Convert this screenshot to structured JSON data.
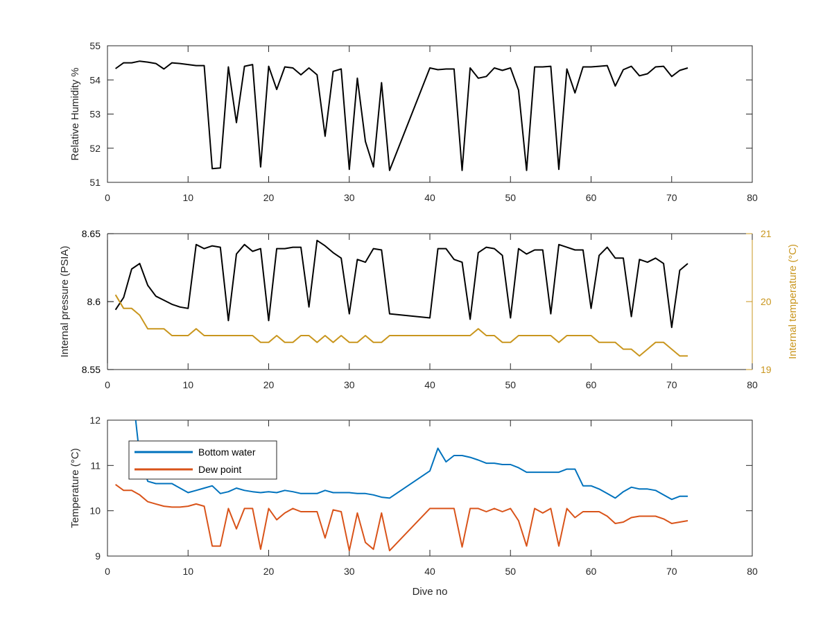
{
  "chart_data": [
    {
      "type": "line",
      "title": "",
      "xlabel": "",
      "ylabel": "Relative Humidity %",
      "xlim": [
        0,
        80
      ],
      "ylim": [
        51,
        55
      ],
      "xticks": [
        0,
        10,
        20,
        30,
        40,
        50,
        60,
        70,
        80
      ],
      "yticks": [
        51,
        52,
        53,
        54,
        55
      ],
      "grid": false,
      "series": [
        {
          "color": "#000000",
          "x": [
            1,
            2,
            3,
            4,
            5,
            6,
            7,
            8,
            9,
            10,
            11,
            12,
            13,
            14,
            15,
            16,
            17,
            18,
            19,
            20,
            21,
            22,
            23,
            24,
            25,
            26,
            27,
            28,
            29,
            30,
            31,
            32,
            33,
            34,
            35,
            40,
            41,
            42,
            43,
            44,
            45,
            46,
            47,
            48,
            49,
            50,
            51,
            52,
            53,
            54,
            55,
            56,
            57,
            58,
            59,
            60,
            61,
            62,
            63,
            64,
            65,
            66,
            67,
            68,
            69,
            70,
            71,
            72
          ],
          "values": [
            54.33,
            54.5,
            54.5,
            54.55,
            54.52,
            54.48,
            54.32,
            54.5,
            54.48,
            54.45,
            54.42,
            54.42,
            51.4,
            51.42,
            54.38,
            52.75,
            54.4,
            54.45,
            51.45,
            54.4,
            53.72,
            54.38,
            54.35,
            54.15,
            54.35,
            54.15,
            52.35,
            54.25,
            54.32,
            51.38,
            54.05,
            52.2,
            51.45,
            53.92,
            51.35,
            54.35,
            54.3,
            54.32,
            54.32,
            51.35,
            54.35,
            54.05,
            54.1,
            54.35,
            54.28,
            54.35,
            53.7,
            51.35,
            54.38,
            54.38,
            54.4,
            51.38,
            54.32,
            53.62,
            54.38,
            54.38,
            54.4,
            54.42,
            53.82,
            54.3,
            54.4,
            54.12,
            54.18,
            54.38,
            54.4,
            54.1,
            54.28,
            54.35
          ]
        }
      ]
    },
    {
      "type": "line",
      "title": "",
      "xlabel": "",
      "ylabel": "Internal pressure (PSIA)",
      "y2label": "Internal temperature (°C)",
      "xlim": [
        0,
        80
      ],
      "ylim": [
        8.55,
        8.65
      ],
      "y2lim": [
        19,
        21
      ],
      "xticks": [
        0,
        10,
        20,
        30,
        40,
        50,
        60,
        70,
        80
      ],
      "yticks": [
        8.55,
        8.6,
        8.65
      ],
      "ytick_labels": [
        "8.55",
        "8.6",
        "8.65"
      ],
      "y2ticks": [
        19,
        20,
        21
      ],
      "grid": false,
      "series": [
        {
          "axis": "left",
          "color": "#000000",
          "x": [
            1,
            2,
            3,
            4,
            5,
            6,
            7,
            8,
            9,
            10,
            11,
            12,
            13,
            14,
            15,
            16,
            17,
            18,
            19,
            20,
            21,
            22,
            23,
            24,
            25,
            26,
            27,
            28,
            29,
            30,
            31,
            32,
            33,
            34,
            35,
            40,
            41,
            42,
            43,
            44,
            45,
            46,
            47,
            48,
            49,
            50,
            51,
            52,
            53,
            54,
            55,
            56,
            57,
            58,
            59,
            60,
            61,
            62,
            63,
            64,
            65,
            66,
            67,
            68,
            69,
            70,
            71,
            72
          ],
          "values": [
            8.594,
            8.603,
            8.624,
            8.628,
            8.612,
            8.604,
            8.601,
            8.598,
            8.596,
            8.595,
            8.642,
            8.639,
            8.641,
            8.64,
            8.586,
            8.635,
            8.642,
            8.637,
            8.639,
            8.586,
            8.639,
            8.639,
            8.64,
            8.64,
            8.596,
            8.645,
            8.641,
            8.636,
            8.632,
            8.591,
            8.631,
            8.629,
            8.639,
            8.638,
            8.591,
            8.588,
            8.639,
            8.639,
            8.631,
            8.629,
            8.587,
            8.636,
            8.64,
            8.639,
            8.634,
            8.588,
            8.639,
            8.635,
            8.638,
            8.638,
            8.591,
            8.642,
            8.64,
            8.638,
            8.638,
            8.595,
            8.634,
            8.64,
            8.632,
            8.632,
            8.589,
            8.631,
            8.629,
            8.632,
            8.628,
            8.581,
            8.623,
            8.628
          ]
        },
        {
          "axis": "right",
          "color": "#C9961E",
          "x": [
            1,
            2,
            3,
            4,
            5,
            6,
            7,
            8,
            9,
            10,
            11,
            12,
            13,
            14,
            15,
            16,
            17,
            18,
            19,
            20,
            21,
            22,
            23,
            24,
            25,
            26,
            27,
            28,
            29,
            30,
            31,
            32,
            33,
            34,
            35,
            40,
            41,
            42,
            43,
            44,
            45,
            46,
            47,
            48,
            49,
            50,
            51,
            52,
            53,
            54,
            55,
            56,
            57,
            58,
            59,
            60,
            61,
            62,
            63,
            64,
            65,
            66,
            67,
            68,
            69,
            70,
            71,
            72
          ],
          "values": [
            20.1,
            19.9,
            19.9,
            19.8,
            19.6,
            19.6,
            19.6,
            19.5,
            19.5,
            19.5,
            19.6,
            19.5,
            19.5,
            19.5,
            19.5,
            19.5,
            19.5,
            19.5,
            19.4,
            19.4,
            19.5,
            19.4,
            19.4,
            19.5,
            19.5,
            19.4,
            19.5,
            19.4,
            19.5,
            19.4,
            19.4,
            19.5,
            19.4,
            19.4,
            19.5,
            19.5,
            19.5,
            19.5,
            19.5,
            19.5,
            19.5,
            19.6,
            19.5,
            19.5,
            19.4,
            19.4,
            19.5,
            19.5,
            19.5,
            19.5,
            19.5,
            19.4,
            19.5,
            19.5,
            19.5,
            19.5,
            19.4,
            19.4,
            19.4,
            19.3,
            19.3,
            19.2,
            19.3,
            19.4,
            19.4,
            19.3,
            19.2,
            19.2
          ]
        }
      ]
    },
    {
      "type": "line",
      "title": "",
      "xlabel": "Dive no",
      "ylabel": "Temperature (°C)",
      "xlim": [
        0,
        80
      ],
      "ylim": [
        9,
        12
      ],
      "xticks": [
        0,
        10,
        20,
        30,
        40,
        50,
        60,
        70,
        80
      ],
      "yticks": [
        9,
        10,
        11,
        12
      ],
      "grid": false,
      "legend": "upper-left",
      "series": [
        {
          "name": "Bottom water",
          "color": "#0072BD",
          "x": [
            3.5,
            4,
            5,
            6,
            7,
            8,
            9,
            10,
            11,
            12,
            13,
            14,
            15,
            16,
            17,
            18,
            19,
            20,
            21,
            22,
            23,
            24,
            25,
            26,
            27,
            28,
            29,
            30,
            31,
            32,
            33,
            34,
            35,
            40,
            41,
            42,
            43,
            44,
            45,
            46,
            47,
            48,
            49,
            50,
            51,
            52,
            53,
            54,
            55,
            56,
            57,
            58,
            59,
            60,
            61,
            62,
            63,
            64,
            65,
            66,
            67,
            68,
            69,
            70,
            71,
            72
          ],
          "values": [
            12,
            11.2,
            10.65,
            10.6,
            10.6,
            10.6,
            10.5,
            10.4,
            10.45,
            10.5,
            10.55,
            10.38,
            10.42,
            10.5,
            10.45,
            10.42,
            10.4,
            10.42,
            10.4,
            10.45,
            10.42,
            10.38,
            10.38,
            10.38,
            10.45,
            10.4,
            10.4,
            10.4,
            10.38,
            10.38,
            10.35,
            10.3,
            10.28,
            10.88,
            11.38,
            11.08,
            11.22,
            11.22,
            11.18,
            11.12,
            11.05,
            11.05,
            11.02,
            11.02,
            10.95,
            10.85,
            10.85,
            10.85,
            10.85,
            10.85,
            10.92,
            10.92,
            10.55,
            10.55,
            10.48,
            10.38,
            10.28,
            10.42,
            10.52,
            10.48,
            10.48,
            10.45,
            10.35,
            10.25,
            10.32,
            10.32
          ]
        },
        {
          "name": "Dew point",
          "color": "#D95319",
          "x": [
            1,
            2,
            3,
            4,
            5,
            6,
            7,
            8,
            9,
            10,
            11,
            12,
            13,
            14,
            15,
            16,
            17,
            18,
            19,
            20,
            21,
            22,
            23,
            24,
            25,
            26,
            27,
            28,
            29,
            30,
            31,
            32,
            33,
            34,
            35,
            40,
            41,
            42,
            43,
            44,
            45,
            46,
            47,
            48,
            49,
            50,
            51,
            52,
            53,
            54,
            55,
            56,
            57,
            58,
            59,
            60,
            61,
            62,
            63,
            64,
            65,
            66,
            67,
            68,
            69,
            70,
            71,
            72
          ],
          "values": [
            10.58,
            10.45,
            10.45,
            10.35,
            10.2,
            10.15,
            10.1,
            10.08,
            10.08,
            10.1,
            10.15,
            10.1,
            9.22,
            9.22,
            10.05,
            9.6,
            10.05,
            10.05,
            9.15,
            10.05,
            9.8,
            9.95,
            10.05,
            9.98,
            9.98,
            9.98,
            9.4,
            10.02,
            9.98,
            9.12,
            9.95,
            9.3,
            9.15,
            9.95,
            9.12,
            10.05,
            10.05,
            10.05,
            10.05,
            9.2,
            10.05,
            10.05,
            9.98,
            10.05,
            9.98,
            10.05,
            9.78,
            9.22,
            10.05,
            9.95,
            10.05,
            9.22,
            10.05,
            9.85,
            9.98,
            9.98,
            9.98,
            9.88,
            9.72,
            9.75,
            9.85,
            9.88,
            9.88,
            9.88,
            9.82,
            9.72,
            9.75,
            9.78
          ]
        }
      ]
    }
  ]
}
